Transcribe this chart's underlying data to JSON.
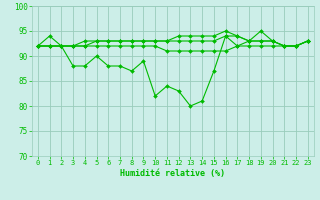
{
  "background_color": "#cceee8",
  "grid_color": "#99ccbb",
  "line_color": "#00bb00",
  "marker_color": "#00bb00",
  "xlabel": "Humidité relative (%)",
  "xlabel_color": "#00bb00",
  "tick_color": "#00bb00",
  "ylim": [
    70,
    100
  ],
  "yticks": [
    70,
    75,
    80,
    85,
    90,
    95,
    100
  ],
  "xlim": [
    -0.5,
    23.5
  ],
  "xticks": [
    0,
    1,
    2,
    3,
    4,
    5,
    6,
    7,
    8,
    9,
    10,
    11,
    12,
    13,
    14,
    15,
    16,
    17,
    18,
    19,
    20,
    21,
    22,
    23
  ],
  "series": [
    [
      92,
      94,
      92,
      88,
      88,
      90,
      88,
      88,
      87,
      89,
      82,
      84,
      83,
      80,
      81,
      87,
      94,
      92,
      93,
      95,
      93,
      92,
      92,
      93
    ],
    [
      92,
      92,
      92,
      92,
      92,
      92,
      92,
      92,
      92,
      92,
      92,
      91,
      91,
      91,
      91,
      91,
      91,
      92,
      92,
      92,
      92,
      92,
      92,
      93
    ],
    [
      92,
      92,
      92,
      92,
      92,
      93,
      93,
      93,
      93,
      93,
      93,
      93,
      93,
      93,
      93,
      93,
      94,
      94,
      93,
      93,
      93,
      92,
      92,
      93
    ],
    [
      92,
      92,
      92,
      92,
      93,
      93,
      93,
      93,
      93,
      93,
      93,
      93,
      94,
      94,
      94,
      94,
      95,
      94,
      93,
      93,
      93,
      92,
      92,
      93
    ]
  ],
  "figsize": [
    3.2,
    2.0
  ],
  "dpi": 100
}
